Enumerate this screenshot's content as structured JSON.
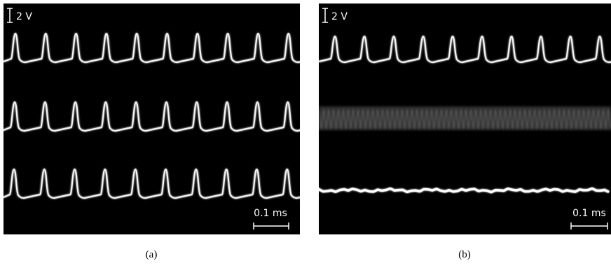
{
  "panels": [
    {
      "label": "(a)",
      "voltage_scale": "2 V",
      "time_scale": "0.1 ms"
    },
    {
      "label": "(b)",
      "voltage_scale": "2 V",
      "time_scale": "0.1 ms"
    }
  ]
}
